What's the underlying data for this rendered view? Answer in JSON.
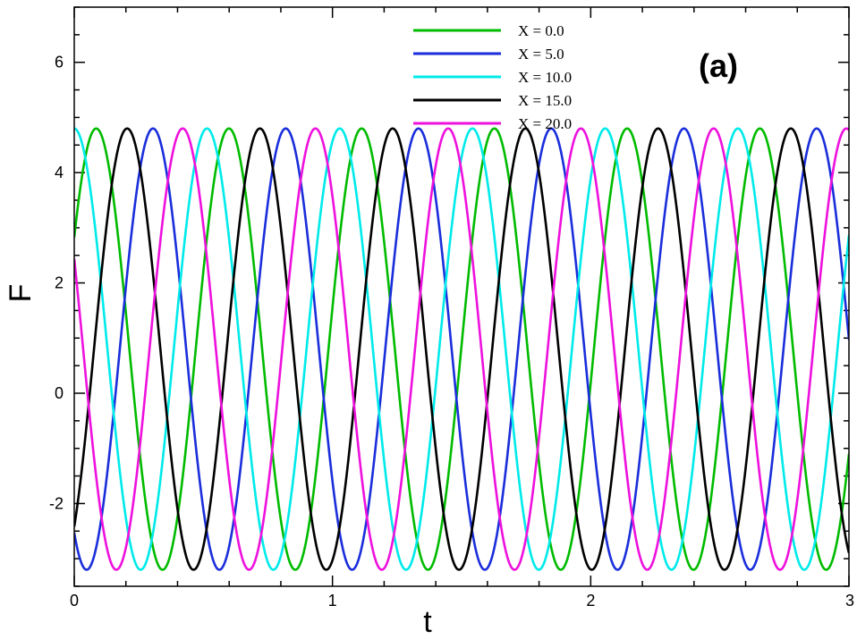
{
  "chart_data": {
    "type": "line",
    "panel_label": "(a)",
    "xlabel": "t",
    "ylabel": "F",
    "xlim": [
      0,
      3
    ],
    "ylim": [
      -3.5,
      7
    ],
    "x_ticks": [
      "0",
      "1",
      "2",
      "3"
    ],
    "y_ticks": [
      "-2",
      "0",
      "2",
      "4",
      "6"
    ],
    "x_tick_values": [
      0,
      1,
      2,
      3
    ],
    "y_tick_values": [
      -2,
      0,
      2,
      4,
      6
    ],
    "grid": false,
    "legend_position": "top-center",
    "series_model": {
      "form": "F = 0.8 + 4.0 * cos(2*pi*(t - t_peak)/0.514)",
      "mean": 0.8,
      "amplitude": 4.0,
      "period": 0.514,
      "max": 4.8,
      "min": -3.2
    },
    "series": [
      {
        "name": "X = 0.0",
        "color": "#00bb00",
        "t_peak": 0.085
      },
      {
        "name": "X = 5.0",
        "color": "#1a2edb",
        "t_peak": 0.305
      },
      {
        "name": "X = 10.0",
        "color": "#00eaea",
        "t_peak": 0.0
      },
      {
        "name": "X = 15.0",
        "color": "#000000",
        "t_peak": 0.205
      },
      {
        "name": "X = 20.0",
        "color": "#ee11dd",
        "t_peak": 0.42
      }
    ]
  }
}
